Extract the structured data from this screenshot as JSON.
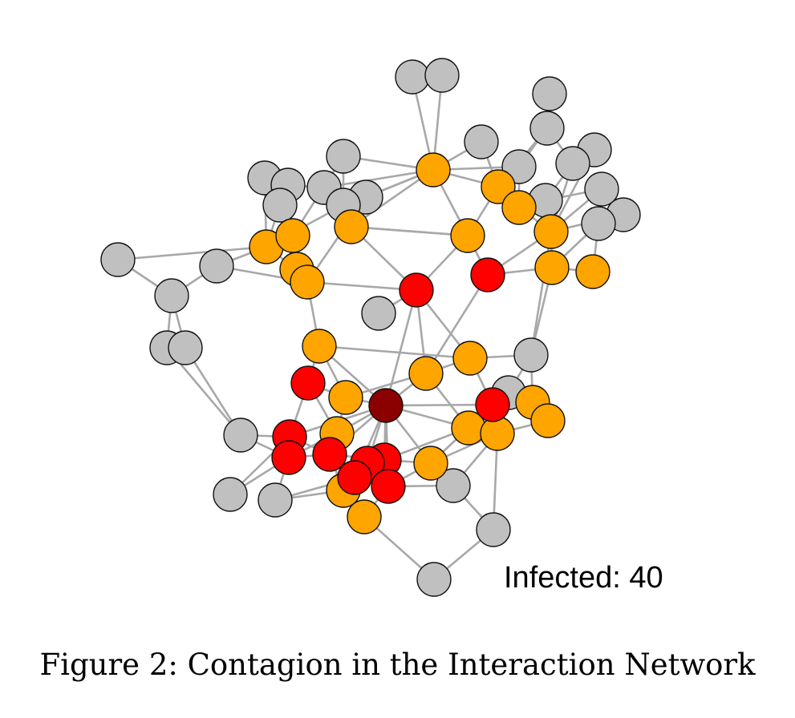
{
  "figure": {
    "caption": "Figure 2: Contagion in the Interaction Network",
    "infected_label": "Infected: 40"
  },
  "legend_colors": {
    "uninfected": "#c0c0c0",
    "recently_infected": "#ffa500",
    "infected": "#ff0000",
    "seed": "#8b0000",
    "edge": "#a8a8a8"
  },
  "network": {
    "node_count": 74,
    "infected_count": 40
  }
}
